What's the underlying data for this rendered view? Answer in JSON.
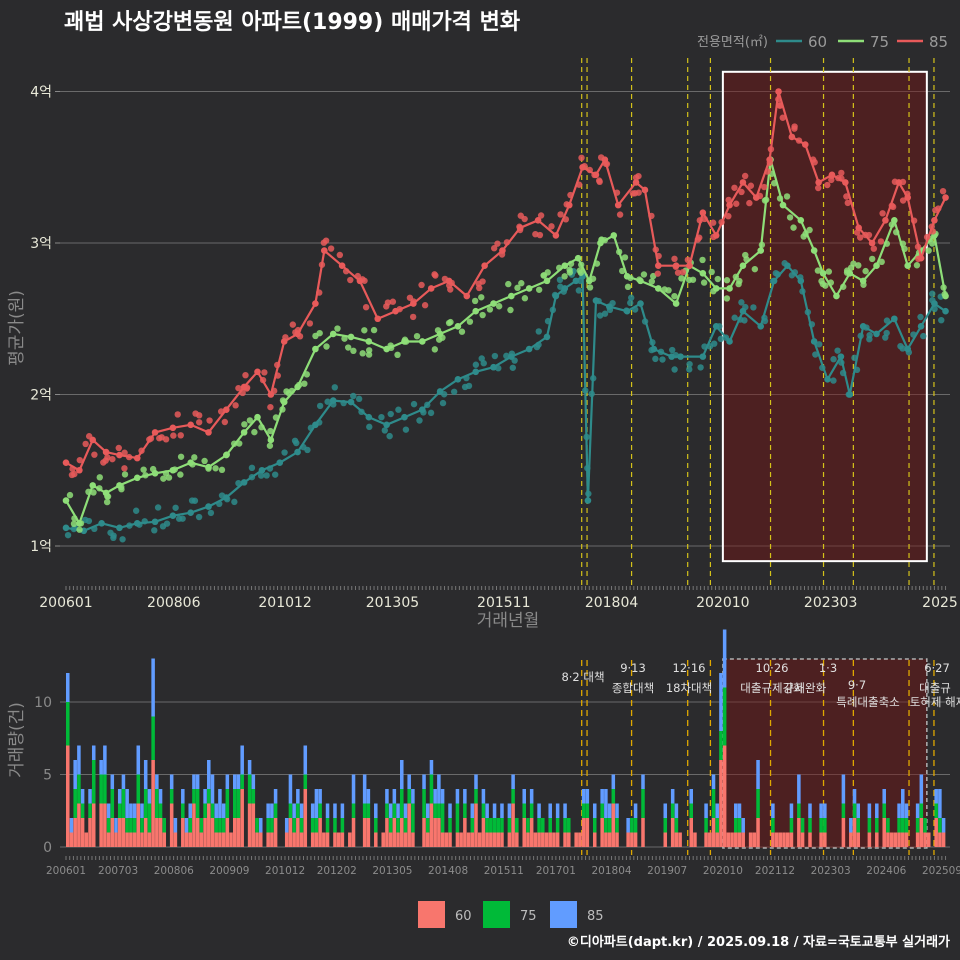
{
  "chart_data": [
    {
      "type": "line",
      "title": "괘법 사상강변동원 아파트(1999) 매매가격 변화",
      "xlabel": "거래년월",
      "ylabel": "평균가(원)",
      "y_tick_labels": [
        "1억",
        "2억",
        "3억",
        "4억"
      ],
      "y_ticks": [
        1,
        2,
        3,
        4
      ],
      "ylim": [
        0.8,
        4.3
      ],
      "x_tick_labels": [
        "200601",
        "200806",
        "201012",
        "201305",
        "201511",
        "201804",
        "202010",
        "202303",
        "2025"
      ],
      "legend_title": "전용면적(㎡)",
      "legend_position": "top-right",
      "grid": true,
      "colors": {
        "60": "#2e8b8b",
        "75": "#8ede78",
        "85": "#e85a5a"
      },
      "x_unit": "year (decimal, 2006.0 = 200601)",
      "highlight_range": [
        2020.75,
        2025.33
      ],
      "policy_lines": [
        2017.58,
        2017.7,
        2018.7,
        2019.96,
        2020.47,
        2021.82,
        2023.01,
        2023.68,
        2024.93,
        2025.49
      ],
      "series": [
        {
          "name": "60",
          "points": [
            [
              2006.0,
              1.12
            ],
            [
              2006.4,
              1.1
            ],
            [
              2006.8,
              1.15
            ],
            [
              2007.2,
              1.12
            ],
            [
              2007.6,
              1.15
            ],
            [
              2008.0,
              1.16
            ],
            [
              2008.4,
              1.2
            ],
            [
              2008.8,
              1.22
            ],
            [
              2009.2,
              1.26
            ],
            [
              2009.6,
              1.32
            ],
            [
              2010.0,
              1.42
            ],
            [
              2010.4,
              1.5
            ],
            [
              2010.8,
              1.55
            ],
            [
              2011.2,
              1.62
            ],
            [
              2011.6,
              1.8
            ],
            [
              2012.0,
              1.96
            ],
            [
              2012.4,
              1.95
            ],
            [
              2012.8,
              1.85
            ],
            [
              2013.2,
              1.8
            ],
            [
              2013.6,
              1.85
            ],
            [
              2014.0,
              1.9
            ],
            [
              2014.4,
              2.02
            ],
            [
              2014.8,
              2.1
            ],
            [
              2015.2,
              2.15
            ],
            [
              2015.6,
              2.18
            ],
            [
              2016.0,
              2.25
            ],
            [
              2016.4,
              2.3
            ],
            [
              2016.8,
              2.38
            ],
            [
              2017.0,
              2.65
            ],
            [
              2017.2,
              2.7
            ],
            [
              2017.45,
              2.75
            ],
            [
              2017.6,
              2.78
            ],
            [
              2017.72,
              1.3
            ],
            [
              2017.9,
              2.62
            ],
            [
              2018.2,
              2.58
            ],
            [
              2018.6,
              2.55
            ],
            [
              2018.9,
              2.6
            ],
            [
              2019.2,
              2.3
            ],
            [
              2019.6,
              2.25
            ],
            [
              2019.8,
              2.25
            ],
            [
              2020.3,
              2.25
            ],
            [
              2020.6,
              2.45
            ],
            [
              2020.9,
              2.35
            ],
            [
              2021.2,
              2.55
            ],
            [
              2021.6,
              2.45
            ],
            [
              2021.9,
              2.75
            ],
            [
              2022.2,
              2.85
            ],
            [
              2022.5,
              2.75
            ],
            [
              2022.8,
              2.35
            ],
            [
              2023.1,
              2.1
            ],
            [
              2023.4,
              2.25
            ],
            [
              2023.6,
              2.0
            ],
            [
              2023.9,
              2.45
            ],
            [
              2024.2,
              2.4
            ],
            [
              2024.6,
              2.5
            ],
            [
              2024.9,
              2.3
            ],
            [
              2025.2,
              2.45
            ],
            [
              2025.5,
              2.6
            ],
            [
              2025.75,
              2.55
            ]
          ]
        },
        {
          "name": "75",
          "points": [
            [
              2006.0,
              1.3
            ],
            [
              2006.3,
              1.15
            ],
            [
              2006.6,
              1.4
            ],
            [
              2006.9,
              1.35
            ],
            [
              2007.2,
              1.4
            ],
            [
              2007.6,
              1.45
            ],
            [
              2008.0,
              1.48
            ],
            [
              2008.4,
              1.5
            ],
            [
              2008.8,
              1.55
            ],
            [
              2009.2,
              1.52
            ],
            [
              2009.6,
              1.6
            ],
            [
              2010.0,
              1.75
            ],
            [
              2010.3,
              1.85
            ],
            [
              2010.6,
              1.7
            ],
            [
              2010.9,
              1.95
            ],
            [
              2011.2,
              2.05
            ],
            [
              2011.6,
              2.3
            ],
            [
              2012.0,
              2.4
            ],
            [
              2012.4,
              2.38
            ],
            [
              2012.8,
              2.35
            ],
            [
              2013.2,
              2.3
            ],
            [
              2013.6,
              2.35
            ],
            [
              2014.0,
              2.35
            ],
            [
              2014.4,
              2.4
            ],
            [
              2014.8,
              2.45
            ],
            [
              2015.2,
              2.55
            ],
            [
              2015.6,
              2.6
            ],
            [
              2016.0,
              2.65
            ],
            [
              2016.4,
              2.7
            ],
            [
              2016.8,
              2.75
            ],
            [
              2017.2,
              2.85
            ],
            [
              2017.5,
              2.9
            ],
            [
              2017.75,
              2.75
            ],
            [
              2018.0,
              3.0
            ],
            [
              2018.3,
              3.05
            ],
            [
              2018.6,
              2.78
            ],
            [
              2018.9,
              2.75
            ],
            [
              2019.3,
              2.7
            ],
            [
              2019.7,
              2.6
            ],
            [
              2020.0,
              2.85
            ],
            [
              2020.3,
              2.8
            ],
            [
              2020.6,
              2.7
            ],
            [
              2020.9,
              2.7
            ],
            [
              2021.2,
              2.85
            ],
            [
              2021.6,
              2.95
            ],
            [
              2021.82,
              3.55
            ],
            [
              2022.1,
              3.25
            ],
            [
              2022.5,
              3.15
            ],
            [
              2022.8,
              2.95
            ],
            [
              2023.0,
              2.8
            ],
            [
              2023.3,
              2.65
            ],
            [
              2023.6,
              2.8
            ],
            [
              2023.9,
              2.75
            ],
            [
              2024.2,
              2.85
            ],
            [
              2024.6,
              3.15
            ],
            [
              2024.9,
              2.85
            ],
            [
              2025.2,
              2.95
            ],
            [
              2025.5,
              3.05
            ],
            [
              2025.75,
              2.65
            ]
          ]
        },
        {
          "name": "85",
          "points": [
            [
              2006.0,
              1.55
            ],
            [
              2006.3,
              1.5
            ],
            [
              2006.6,
              1.7
            ],
            [
              2006.9,
              1.62
            ],
            [
              2007.2,
              1.6
            ],
            [
              2007.6,
              1.58
            ],
            [
              2008.0,
              1.75
            ],
            [
              2008.4,
              1.78
            ],
            [
              2008.8,
              1.8
            ],
            [
              2009.2,
              1.75
            ],
            [
              2009.6,
              1.9
            ],
            [
              2010.0,
              2.05
            ],
            [
              2010.3,
              2.15
            ],
            [
              2010.6,
              2.0
            ],
            [
              2010.9,
              2.35
            ],
            [
              2011.2,
              2.4
            ],
            [
              2011.6,
              2.6
            ],
            [
              2011.8,
              2.95
            ],
            [
              2012.2,
              2.85
            ],
            [
              2012.6,
              2.75
            ],
            [
              2013.0,
              2.5
            ],
            [
              2013.4,
              2.55
            ],
            [
              2013.8,
              2.6
            ],
            [
              2014.2,
              2.7
            ],
            [
              2014.6,
              2.75
            ],
            [
              2015.0,
              2.65
            ],
            [
              2015.4,
              2.85
            ],
            [
              2015.8,
              2.95
            ],
            [
              2016.2,
              3.1
            ],
            [
              2016.6,
              3.15
            ],
            [
              2017.0,
              3.05
            ],
            [
              2017.3,
              3.25
            ],
            [
              2017.6,
              3.5
            ],
            [
              2017.9,
              3.45
            ],
            [
              2018.1,
              3.55
            ],
            [
              2018.4,
              3.25
            ],
            [
              2018.8,
              3.4
            ],
            [
              2019.0,
              3.35
            ],
            [
              2019.3,
              2.85
            ],
            [
              2019.7,
              2.85
            ],
            [
              2020.0,
              2.85
            ],
            [
              2020.3,
              3.2
            ],
            [
              2020.6,
              3.05
            ],
            [
              2020.9,
              3.25
            ],
            [
              2021.2,
              3.4
            ],
            [
              2021.5,
              3.3
            ],
            [
              2021.8,
              3.55
            ],
            [
              2022.0,
              4.0
            ],
            [
              2022.3,
              3.7
            ],
            [
              2022.6,
              3.65
            ],
            [
              2022.9,
              3.4
            ],
            [
              2023.2,
              3.45
            ],
            [
              2023.5,
              3.4
            ],
            [
              2023.8,
              3.1
            ],
            [
              2024.1,
              3.0
            ],
            [
              2024.4,
              3.15
            ],
            [
              2024.7,
              3.4
            ],
            [
              2024.9,
              3.3
            ],
            [
              2025.2,
              2.9
            ],
            [
              2025.5,
              3.15
            ],
            [
              2025.75,
              3.3
            ]
          ]
        }
      ]
    },
    {
      "type": "bar",
      "stacked": true,
      "ylabel": "거래량(건)",
      "y_ticks": [
        0,
        5,
        10
      ],
      "ylim": [
        0,
        11
      ],
      "x_tick_labels": [
        "200601",
        "200703",
        "200806",
        "200909",
        "201012",
        "201202",
        "201305",
        "201408",
        "201511",
        "201701",
        "201804",
        "201907",
        "202010",
        "202112",
        "202303",
        "202406",
        "202509"
      ],
      "colors": {
        "60": "#f8766d",
        "75": "#00ba38",
        "85": "#619cff"
      },
      "legend": [
        "60",
        "75",
        "85"
      ],
      "legend_position": "bottom",
      "annotations": [
        {
          "date": "8·2",
          "text": "대책",
          "x": 2017.58
        },
        {
          "date": "9·13",
          "text": "종합대책",
          "x": 2018.7
        },
        {
          "date": "12·16",
          "text": "18차대책",
          "x": 2019.96
        },
        {
          "date": "10·26",
          "text": "대출규제강화",
          "x": 2021.82
        },
        {
          "date": "1·3",
          "text": "규제완화",
          "x": 2023.01
        },
        {
          "date": "9·7",
          "text": "특례대출축소",
          "x": 2023.68
        },
        {
          "date": "",
          "text": "토허제 해제",
          "x": 2024.93
        },
        {
          "date": "6·27",
          "text": "대출규",
          "x": 2025.49
        }
      ]
    }
  ],
  "footer": "©디아파트(dapt.kr) / 2025.09.18 / 자료=국토교통부 실거래가"
}
